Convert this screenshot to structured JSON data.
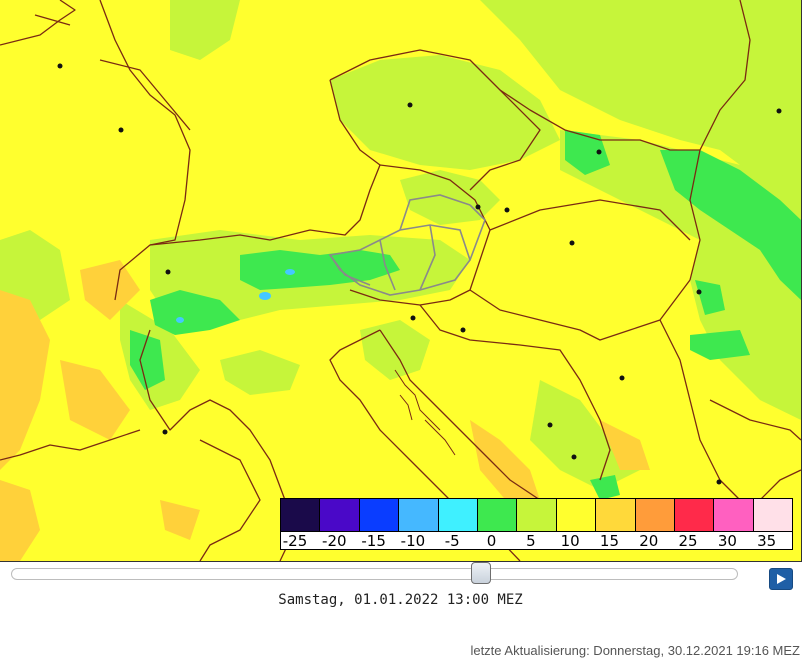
{
  "map": {
    "background_color": "#ffff2e",
    "palette": {
      "cold_green": "#c6f53a",
      "green": "#3ee84f",
      "cyan": "#45c8ff",
      "orange": "#ffd13a",
      "border": "#7a2a12",
      "region_border": "#8a8a8a",
      "city": "#111111"
    },
    "cities": [
      "city-1",
      "city-2",
      "city-3",
      "city-4",
      "city-5",
      "city-6",
      "city-7",
      "city-8",
      "city-9",
      "city-10",
      "city-11",
      "city-12",
      "city-13",
      "city-14",
      "city-15",
      "city-16",
      "city-17"
    ]
  },
  "legend": {
    "colors": [
      "#1a0a4a",
      "#4a08c8",
      "#0a3dff",
      "#45b8ff",
      "#3ff0ff",
      "#3ee84f",
      "#c6f53a",
      "#ffff2e",
      "#ffd93a",
      "#ff9c3a",
      "#ff2a4a",
      "#ff60c0",
      "#ffe0e8"
    ],
    "labels": [
      "-25",
      "-20",
      "-15",
      "-10",
      "-5",
      "0",
      "5",
      "10",
      "15",
      "20",
      "25",
      "30",
      "35"
    ]
  },
  "controls": {
    "slider_fraction": 0.65,
    "play_icon": "play-icon"
  },
  "time_label": "Samstag, 01.01.2022 13:00 MEZ",
  "update_label": "letzte Aktualisierung: Donnerstag, 30.12.2021 19:16 MEZ"
}
